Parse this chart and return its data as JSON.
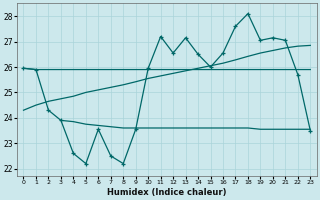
{
  "xlabel": "Humidex (Indice chaleur)",
  "bg_color": "#cce8ec",
  "line_color": "#006868",
  "x_values": [
    0,
    1,
    2,
    3,
    4,
    5,
    6,
    7,
    8,
    9,
    10,
    11,
    12,
    13,
    14,
    15,
    16,
    17,
    18,
    19,
    20,
    21,
    22,
    23
  ],
  "flat_line": [
    25.95,
    25.9,
    25.9,
    25.9,
    25.9,
    25.9,
    25.9,
    25.9,
    25.9,
    25.9,
    25.9,
    25.9,
    25.9,
    25.9,
    25.9,
    25.9,
    25.9,
    25.9,
    25.9,
    25.9,
    25.9,
    25.9,
    25.9,
    25.9
  ],
  "trend_line": [
    24.3,
    24.5,
    24.65,
    24.75,
    24.85,
    25.0,
    25.1,
    25.2,
    25.3,
    25.42,
    25.55,
    25.65,
    25.75,
    25.85,
    25.95,
    26.05,
    26.15,
    26.28,
    26.42,
    26.55,
    26.65,
    26.75,
    26.82,
    26.85
  ],
  "main_line": [
    25.95,
    25.9,
    24.3,
    23.9,
    22.6,
    22.2,
    23.55,
    22.5,
    22.2,
    23.55,
    25.95,
    27.2,
    26.55,
    27.15,
    26.5,
    26.0,
    26.55,
    27.6,
    28.1,
    27.05,
    27.15,
    27.05,
    25.7,
    23.5
  ],
  "lower_line": [
    null,
    null,
    null,
    23.9,
    23.85,
    23.75,
    23.7,
    23.65,
    23.6,
    23.6,
    23.6,
    23.6,
    23.6,
    23.6,
    23.6,
    23.6,
    23.6,
    23.6,
    23.6,
    23.55,
    23.55,
    23.55,
    23.55,
    23.55
  ],
  "ylim": [
    21.7,
    28.5
  ],
  "yticks": [
    22,
    23,
    24,
    25,
    26,
    27,
    28
  ],
  "grid_color": "#aad4da",
  "figsize": [
    3.2,
    2.0
  ],
  "dpi": 100
}
